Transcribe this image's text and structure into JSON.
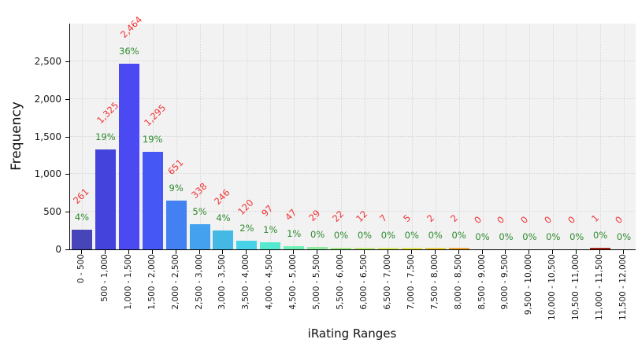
{
  "chart_data": {
    "type": "bar",
    "title": "",
    "xlabel": "iRating Ranges",
    "ylabel": "Frequency",
    "ylim": [
      0,
      3000
    ],
    "grid": "dotted",
    "legend": "none",
    "plot_bg": "#f2f2f2",
    "yticks": [
      0,
      500,
      1000,
      1500,
      2000,
      2500
    ],
    "ytick_labels": [
      "0",
      "500",
      "1,000",
      "1,500",
      "2,000",
      "2,500"
    ],
    "categories": [
      "0 - 500",
      "500 - 1,000",
      "1,000 - 1,500",
      "1,500 - 2,000",
      "2,000 - 2,500",
      "2,500 - 3,000",
      "3,000 - 3,500",
      "3,500 - 4,000",
      "4,000 - 4,500",
      "4,500 - 5,000",
      "5,000 - 5,500",
      "5,500 - 6,000",
      "6,000 - 6,500",
      "6,500 - 7,000",
      "7,000 - 7,500",
      "7,500 - 8,000",
      "8,000 - 8,500",
      "8,500 - 9,000",
      "9,000 - 9,500",
      "9,500 - 10,000",
      "10,000 - 10,500",
      "10,500 - 11,000",
      "11,000 - 11,500",
      "11,500 - 12,000"
    ],
    "values": [
      261,
      1325,
      2464,
      1295,
      651,
      338,
      246,
      120,
      97,
      47,
      29,
      22,
      12,
      7,
      5,
      2,
      2,
      0,
      0,
      0,
      0,
      0,
      1,
      0
    ],
    "value_labels": [
      "261",
      "1,325",
      "2,464",
      "1,295",
      "651",
      "338",
      "246",
      "120",
      "97",
      "47",
      "29",
      "22",
      "12",
      "7",
      "5",
      "2",
      "2",
      "0",
      "0",
      "0",
      "0",
      "0",
      "1",
      "0"
    ],
    "percent_labels": [
      "4%",
      "19%",
      "36%",
      "19%",
      "9%",
      "5%",
      "4%",
      "2%",
      "1%",
      "1%",
      "0%",
      "0%",
      "0%",
      "0%",
      "0%",
      "0%",
      "0%",
      "0%",
      "0%",
      "0%",
      "0%",
      "0%",
      "0%",
      "0%"
    ],
    "bar_colors": [
      "#4745b8",
      "#4444dc",
      "#4a49f2",
      "#4558f5",
      "#4380f2",
      "#43a1ef",
      "#45b9e6",
      "#48d2e8",
      "#55ead0",
      "#70f0b4",
      "#8cee9c",
      "#a3ee88",
      "#bdee76",
      "#d7ee66",
      "#e5e94f",
      "#efcf43",
      "#f0a83a",
      "#ec8232",
      "#e3622a",
      "#d44922",
      "#c2351b",
      "#b02615",
      "#a8231a",
      "#8b1509"
    ],
    "value_label_color": "#f23333",
    "percent_label_color": "#2e8b2e"
  }
}
